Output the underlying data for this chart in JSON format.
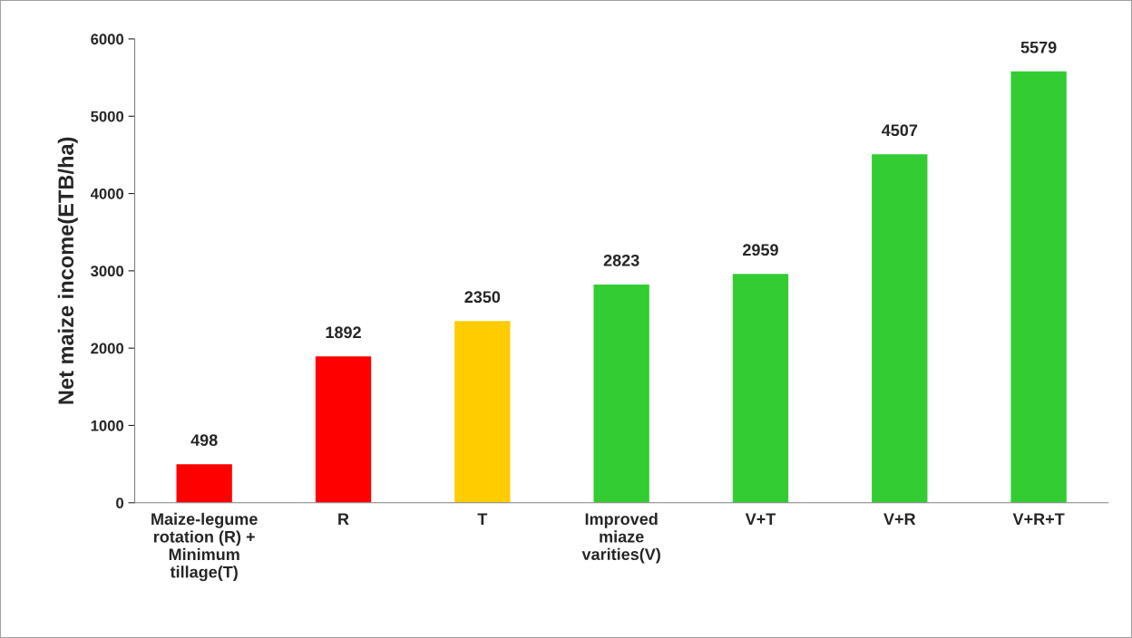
{
  "chart_data": {
    "type": "bar",
    "ylabel": "Net maize income(ETB/ha)",
    "categories": [
      "Maize-legume\nrotation (R) +\nMinimum\ntillage(T)",
      "R",
      "T",
      "Improved\nmiaze\nvarities(V)",
      "V+T",
      "V+R",
      "V+R+T"
    ],
    "values": [
      498,
      1892,
      2350,
      2823,
      2959,
      4507,
      5579
    ],
    "colors": [
      "#ff0000",
      "#ff0000",
      "#ffcc00",
      "#33cc33",
      "#33cc33",
      "#33cc33",
      "#33cc33"
    ],
    "ylim": [
      0,
      6000
    ],
    "yticks": [
      0,
      1000,
      2000,
      3000,
      4000,
      5000,
      6000
    ],
    "data_labels": true,
    "grid": false,
    "legend": false
  }
}
